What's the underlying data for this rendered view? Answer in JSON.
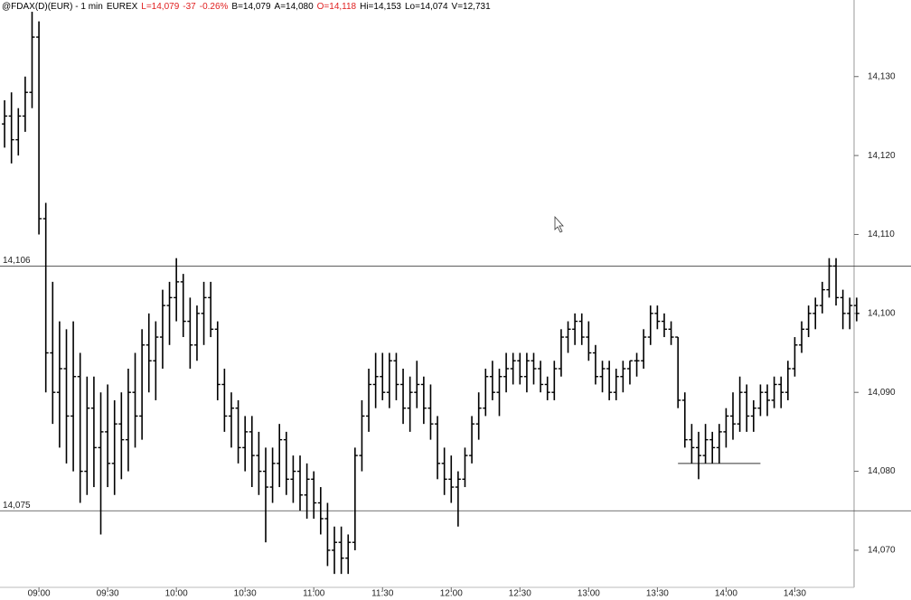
{
  "chart_data": {
    "type": "ohlc",
    "header": [
      {
        "text": "@FDAX(D)(EUR) - 1 min",
        "color": "#000000"
      },
      {
        "text": "EUREX",
        "color": "#000000"
      },
      {
        "text": "L=14,079",
        "color": "#e02020"
      },
      {
        "text": "-37",
        "color": "#e02020"
      },
      {
        "text": "-0.26%",
        "color": "#e02020"
      },
      {
        "text": "B=14,079",
        "color": "#000000"
      },
      {
        "text": "A=14,080",
        "color": "#000000"
      },
      {
        "text": "O=14,118",
        "color": "#e02020"
      },
      {
        "text": "Hi=14,153",
        "color": "#000000"
      },
      {
        "text": "Lo=14,074",
        "color": "#000000"
      },
      {
        "text": "V=12,731",
        "color": "#000000"
      }
    ],
    "color": "#000000",
    "x": [
      "08:45",
      "08:48",
      "08:51",
      "08:54",
      "08:57",
      "09:00",
      "09:03",
      "09:06",
      "09:09",
      "09:12",
      "09:15",
      "09:18",
      "09:21",
      "09:24",
      "09:27",
      "09:30",
      "09:33",
      "09:36",
      "09:39",
      "09:42",
      "09:45",
      "09:48",
      "09:51",
      "09:54",
      "09:57",
      "10:00",
      "10:03",
      "10:06",
      "10:09",
      "10:12",
      "10:15",
      "10:18",
      "10:21",
      "10:24",
      "10:27",
      "10:30",
      "10:33",
      "10:36",
      "10:39",
      "10:42",
      "10:45",
      "10:48",
      "10:51",
      "10:54",
      "10:57",
      "11:00",
      "11:03",
      "11:06",
      "11:09",
      "11:12",
      "11:15",
      "11:18",
      "11:21",
      "11:24",
      "11:27",
      "11:30",
      "11:33",
      "11:36",
      "11:39",
      "11:42",
      "11:45",
      "11:48",
      "11:51",
      "11:54",
      "11:57",
      "12:00",
      "12:03",
      "12:06",
      "12:09",
      "12:12",
      "12:15",
      "12:18",
      "12:21",
      "12:24",
      "12:27",
      "12:30",
      "12:33",
      "12:36",
      "12:39",
      "12:42",
      "12:45",
      "12:48",
      "12:51",
      "12:54",
      "12:57",
      "13:00",
      "13:03",
      "13:06",
      "13:09",
      "13:12",
      "13:15",
      "13:18",
      "13:21",
      "13:24",
      "13:27",
      "13:30",
      "13:33",
      "13:36",
      "13:39",
      "13:42",
      "13:45",
      "13:48",
      "13:51",
      "13:54",
      "13:57",
      "14:00",
      "14:03",
      "14:06",
      "14:09",
      "14:12",
      "14:15",
      "14:18",
      "14:21",
      "14:24",
      "14:27",
      "14:30",
      "14:33",
      "14:36",
      "14:39",
      "14:42",
      "14:45",
      "14:48",
      "14:51",
      "14:54",
      "14:57"
    ],
    "open": [
      14124,
      14125,
      14122,
      14125,
      14128,
      14135,
      14112,
      14095,
      14090,
      14093,
      14087,
      14092,
      14080,
      14088,
      14083,
      14085,
      14081,
      14086,
      14084,
      14090,
      14087,
      14096,
      14094,
      14097,
      14101,
      14102,
      14104,
      14099,
      14096,
      14100,
      14102,
      14098,
      14091,
      14087,
      14088,
      14083,
      14085,
      14082,
      14080,
      14078,
      14081,
      14084,
      14079,
      14080,
      14077,
      14079,
      14076,
      14074,
      14070,
      14071,
      14069,
      14071,
      14082,
      14087,
      14091,
      14092,
      14090,
      14094,
      14091,
      14088,
      14090,
      14091,
      14088,
      14086,
      14081,
      14079,
      14078,
      14079,
      14082,
      14086,
      14088,
      14092,
      14090,
      14092,
      14093,
      14094,
      14092,
      14094,
      14093,
      14091,
      14090,
      14093,
      14097,
      14098,
      14099,
      14097,
      14095,
      14092,
      14093,
      14090,
      14092,
      14093,
      14094,
      14094,
      14097,
      14100,
      14099,
      14098,
      14097,
      14089,
      14084,
      14083,
      14082,
      14084,
      14083,
      14085,
      14087,
      14086,
      14090,
      14087,
      14088,
      14090,
      14089,
      14091,
      14090,
      14093,
      14096,
      14098,
      14100,
      14101,
      14103,
      14106,
      14102,
      14100,
      14101
    ],
    "high": [
      14127,
      14128,
      14126,
      14130,
      14139,
      14137,
      14114,
      14104,
      14099,
      14098,
      14099,
      14095,
      14092,
      14092,
      14090,
      14091,
      14089,
      14090,
      14093,
      14095,
      14098,
      14100,
      14099,
      14103,
      14104,
      14107,
      14105,
      14102,
      14101,
      14104,
      14104,
      14099,
      14093,
      14090,
      14089,
      14087,
      14087,
      14085,
      14083,
      14083,
      14086,
      14085,
      14082,
      14082,
      14081,
      14080,
      14078,
      14076,
      14073,
      14073,
      14072,
      14083,
      14089,
      14093,
      14095,
      14095,
      14095,
      14095,
      14093,
      14092,
      14094,
      14092,
      14091,
      14087,
      14083,
      14082,
      14080,
      14083,
      14087,
      14090,
      14093,
      14094,
      14093,
      14095,
      14095,
      14095,
      14095,
      14095,
      14094,
      14092,
      14094,
      14098,
      14099,
      14100,
      14100,
      14099,
      14096,
      14094,
      14094,
      14093,
      14094,
      14094,
      14095,
      14098,
      14101,
      14101,
      14100,
      14099,
      14097,
      14090,
      14086,
      14085,
      14086,
      14085,
      14086,
      14088,
      14090,
      14092,
      14091,
      14089,
      14091,
      14091,
      14092,
      14092,
      14094,
      14097,
      14099,
      14101,
      14102,
      14104,
      14107,
      14107,
      14103,
      14102,
      14102
    ],
    "low": [
      14121,
      14119,
      14120,
      14123,
      14126,
      14110,
      14090,
      14086,
      14083,
      14081,
      14080,
      14076,
      14077,
      14078,
      14072,
      14078,
      14077,
      14079,
      14080,
      14083,
      14084,
      14090,
      14089,
      14093,
      14096,
      14099,
      14097,
      14093,
      14094,
      14096,
      14097,
      14089,
      14085,
      14083,
      14081,
      14080,
      14078,
      14077,
      14071,
      14076,
      14078,
      14077,
      14076,
      14075,
      14074,
      14074,
      14072,
      14068,
      14067,
      14067,
      14067,
      14070,
      14080,
      14085,
      14088,
      14089,
      14088,
      14089,
      14086,
      14085,
      14088,
      14086,
      14084,
      14079,
      14077,
      14076,
      14073,
      14078,
      14081,
      14084,
      14087,
      14089,
      14087,
      14090,
      14091,
      14091,
      14090,
      14091,
      14090,
      14089,
      14089,
      14092,
      14095,
      14096,
      14096,
      14094,
      14091,
      14090,
      14089,
      14089,
      14090,
      14091,
      14092,
      14093,
      14096,
      14098,
      14097,
      14096,
      14088,
      14083,
      14081,
      14079,
      14081,
      14081,
      14081,
      14083,
      14084,
      14085,
      14085,
      14085,
      14087,
      14087,
      14088,
      14088,
      14089,
      14092,
      14095,
      14097,
      14098,
      14100,
      14102,
      14101,
      14098,
      14098,
      14099
    ],
    "close": [
      14125,
      14122,
      14125,
      14128,
      14135,
      14112,
      14095,
      14090,
      14093,
      14087,
      14092,
      14080,
      14088,
      14083,
      14085,
      14081,
      14086,
      14084,
      14090,
      14087,
      14096,
      14094,
      14097,
      14101,
      14102,
      14104,
      14099,
      14096,
      14100,
      14102,
      14098,
      14091,
      14087,
      14088,
      14083,
      14085,
      14082,
      14080,
      14078,
      14081,
      14084,
      14079,
      14080,
      14077,
      14079,
      14076,
      14074,
      14070,
      14071,
      14069,
      14071,
      14082,
      14087,
      14091,
      14092,
      14090,
      14094,
      14091,
      14088,
      14090,
      14091,
      14088,
      14086,
      14081,
      14079,
      14078,
      14079,
      14082,
      14086,
      14088,
      14092,
      14090,
      14092,
      14093,
      14094,
      14092,
      14094,
      14093,
      14091,
      14090,
      14093,
      14097,
      14098,
      14099,
      14097,
      14095,
      14092,
      14093,
      14090,
      14092,
      14093,
      14094,
      14094,
      14097,
      14100,
      14099,
      14098,
      14097,
      14089,
      14084,
      14083,
      14082,
      14084,
      14083,
      14085,
      14087,
      14086,
      14090,
      14087,
      14088,
      14090,
      14089,
      14091,
      14090,
      14093,
      14096,
      14098,
      14100,
      14101,
      14103,
      14106,
      14102,
      14100,
      14101,
      14100
    ],
    "xlim": [
      "08:43",
      "15:01"
    ],
    "xticks": [
      "09:00",
      "09:30",
      "10:00",
      "10:30",
      "11:00",
      "11:30",
      "12:00",
      "12:30",
      "13:00",
      "13:30",
      "14:00",
      "14:30"
    ],
    "ylim": [
      14065.3,
      14139.7
    ],
    "yticks": [
      {
        "value": 14070,
        "label": "14,070"
      },
      {
        "value": 14080,
        "label": "14,080"
      },
      {
        "value": 14090,
        "label": "14,090"
      },
      {
        "value": 14100,
        "label": "14,100"
      },
      {
        "value": 14110,
        "label": "14,110"
      },
      {
        "value": 14120,
        "label": "14,120"
      },
      {
        "value": 14130,
        "label": "14,130"
      }
    ],
    "hlines": [
      {
        "value": 14106,
        "label": "14,106"
      },
      {
        "value": 14075,
        "label": "14,075"
      }
    ],
    "segments": [
      {
        "value": 14081,
        "from": "13:39",
        "to": "14:15"
      }
    ]
  }
}
